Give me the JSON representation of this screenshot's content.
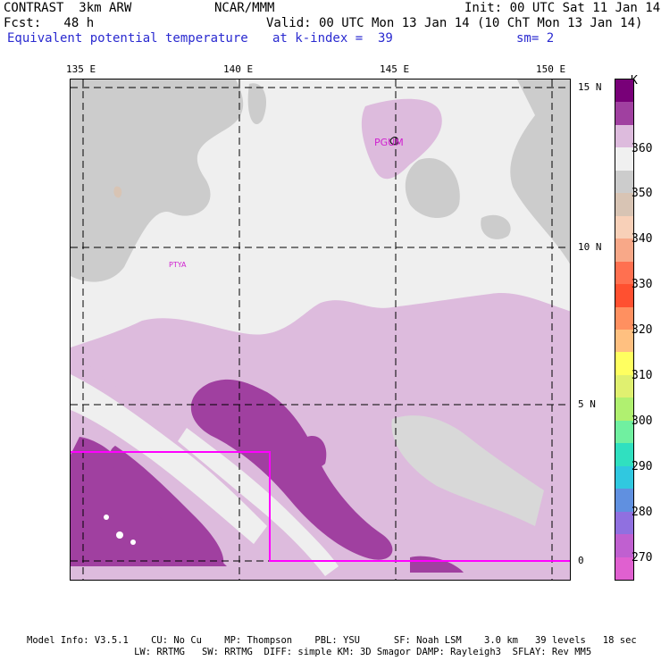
{
  "header": {
    "model_line": "CONTRAST  3km ARW",
    "org": "NCAR/MMM",
    "init": "Init: 00 UTC Sat 11 Jan 14",
    "fcst": "Fcst:   48 h",
    "valid": "Valid: 00 UTC Mon 13 Jan 14 (10 ChT Mon 13 Jan 14)",
    "field": "Equivalent potential temperature",
    "level": "at k-index =  39",
    "smooth": "sm= 2"
  },
  "axes": {
    "lon_labels": [
      "135 E",
      "140 E",
      "145 E",
      "150 E"
    ],
    "lat_labels": [
      "15 N",
      "10 N",
      "5 N",
      "0"
    ]
  },
  "stations": [
    "PGUM",
    "PTYA"
  ],
  "colorbar": {
    "unit": "K",
    "labels": [
      "360",
      "350",
      "340",
      "330",
      "320",
      "310",
      "300",
      "290",
      "280",
      "270"
    ],
    "colors": [
      "#780078",
      "#a040a0",
      "#ddbbdd",
      "#f0f0f0",
      "#cccccc",
      "#d8c4b4",
      "#f8d0b8",
      "#f8a888",
      "#ff7050",
      "#ff5030",
      "#ff9060",
      "#ffc080",
      "#ffff60",
      "#e0f070",
      "#b0f070",
      "#70f0a0",
      "#30e0c0",
      "#30c8e0",
      "#6090e0",
      "#9070e0",
      "#c060d0",
      "#e060d0"
    ]
  },
  "footer": {
    "line1": "Model Info: V3.5.1    CU: No Cu    MP: Thompson    PBL: YSU      SF: Noah LSM    3.0 km   39 levels   18 sec",
    "line2": "                   LW: RRTMG   SW: RRTMG  DIFF: simple KM: 3D Smagor DAMP: Rayleigh3  SFLAY: Rev MM5"
  }
}
